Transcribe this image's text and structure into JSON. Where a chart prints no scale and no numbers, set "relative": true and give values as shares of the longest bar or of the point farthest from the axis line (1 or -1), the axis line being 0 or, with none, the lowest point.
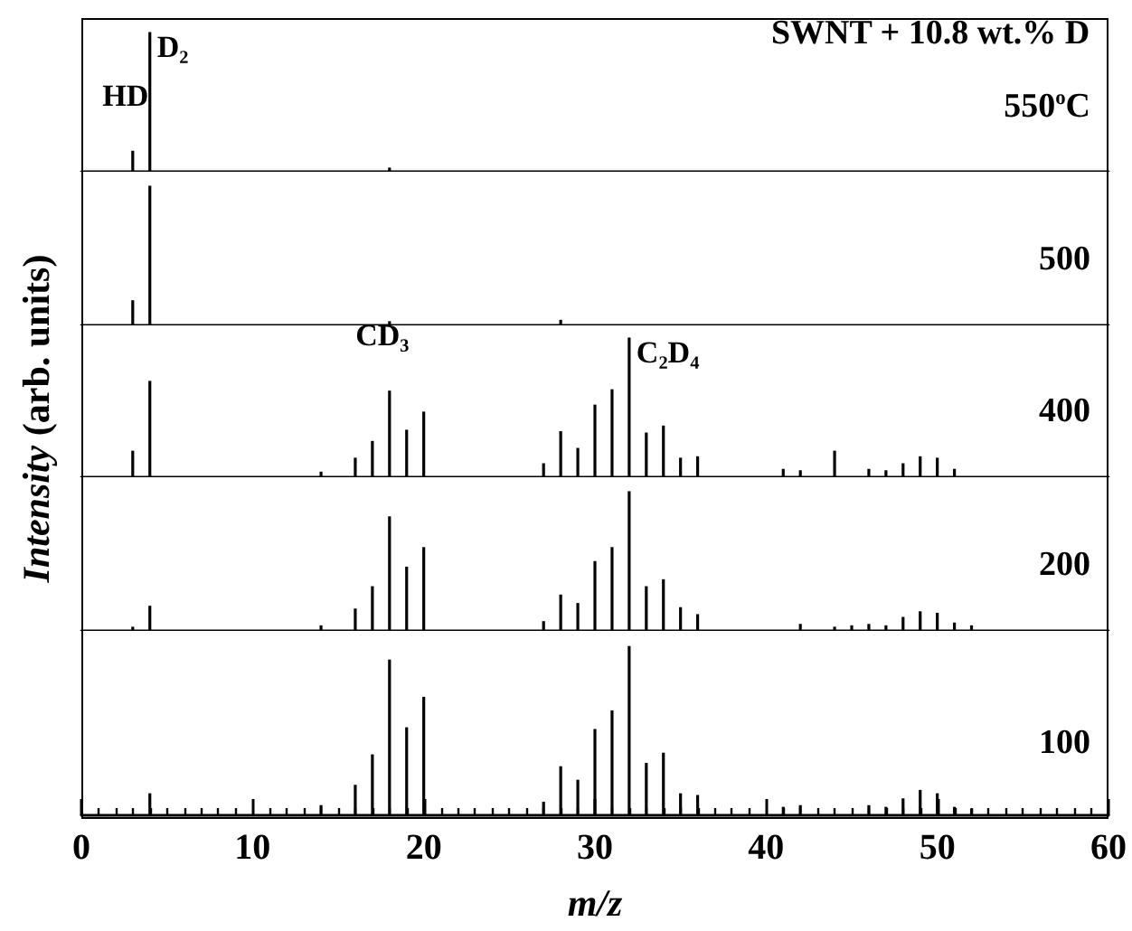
{
  "chart_data": [
    {
      "type": "bar",
      "relative": true,
      "xlim": [
        0,
        60
      ],
      "tick_labels": false,
      "grid": false,
      "annotations": [
        "SWNT + 10.8 wt.% D",
        "550$^{o}$C",
        {
          "text": "HD",
          "x": 3,
          "y": 0.15
        },
        {
          "text": "D₂",
          "x": 4,
          "y": 1
        }
      ],
      "series": [
        {
          "color": "#000000",
          "x": [
            3,
            4,
            18
          ],
          "values": [
            0.15,
            1,
            0.03
          ]
        }
      ]
    },
    {
      "type": "bar",
      "relative": true,
      "xlim": [
        0,
        60
      ],
      "tick_labels": false,
      "grid": false,
      "annotations": [
        "500"
      ],
      "series": [
        {
          "color": "#000000",
          "x": [
            3,
            4,
            18,
            28
          ],
          "values": [
            0.18,
            1,
            0.03,
            0.04
          ]
        }
      ]
    },
    {
      "type": "bar",
      "relative": true,
      "xlim": [
        0,
        60
      ],
      "tick_labels": false,
      "grid": false,
      "ylabel": "Intensity  (arb. units)",
      "annotations": [
        "400",
        {
          "text": "CD₃",
          "x": 18,
          "y": 0.62
        },
        {
          "text": "C₂D₄",
          "x": 32,
          "y": 1
        }
      ],
      "series": [
        {
          "color": "#000000",
          "x": [
            3,
            4,
            14,
            16,
            17,
            18,
            19,
            20,
            27,
            28,
            29,
            30,
            31,
            32,
            33,
            34,
            35,
            36,
            41,
            42,
            44,
            46,
            47,
            48,
            49,
            50,
            51
          ],
          "values": [
            0.19,
            0.69,
            0.04,
            0.14,
            0.26,
            0.62,
            0.34,
            0.47,
            0.1,
            0.33,
            0.21,
            0.52,
            0.63,
            1,
            0.32,
            0.37,
            0.14,
            0.15,
            0.06,
            0.05,
            0.19,
            0.06,
            0.05,
            0.1,
            0.15,
            0.14,
            0.06
          ]
        }
      ]
    },
    {
      "type": "bar",
      "relative": true,
      "xlim": [
        0,
        60
      ],
      "tick_labels": false,
      "grid": false,
      "annotations": [
        "200"
      ],
      "series": [
        {
          "color": "#000000",
          "x": [
            3,
            4,
            14,
            16,
            17,
            18,
            19,
            20,
            27,
            28,
            29,
            30,
            31,
            32,
            33,
            34,
            35,
            36,
            42,
            44,
            45,
            46,
            47,
            48,
            49,
            50,
            51,
            52
          ],
          "values": [
            0.03,
            0.18,
            0.04,
            0.16,
            0.32,
            0.82,
            0.46,
            0.6,
            0.07,
            0.26,
            0.2,
            0.5,
            0.6,
            1,
            0.32,
            0.37,
            0.17,
            0.12,
            0.05,
            0.03,
            0.04,
            0.05,
            0.04,
            0.1,
            0.14,
            0.13,
            0.06,
            0.04
          ]
        }
      ]
    },
    {
      "type": "bar",
      "relative": true,
      "xlim": [
        0,
        60
      ],
      "tick_labels": "x",
      "grid": false,
      "xlabel": "m/z",
      "xticks": [
        0,
        {
          "value": 1,
          "label": null
        },
        {
          "value": 2,
          "label": null
        },
        {
          "value": 3,
          "label": null
        },
        {
          "value": 4,
          "label": null
        },
        {
          "value": 5,
          "label": null
        },
        {
          "value": 6,
          "label": null
        },
        {
          "value": 7,
          "label": null
        },
        {
          "value": 8,
          "label": null
        },
        {
          "value": 9,
          "label": null
        },
        10,
        {
          "value": 11,
          "label": null
        },
        {
          "value": 12,
          "label": null
        },
        {
          "value": 13,
          "label": null
        },
        {
          "value": 14,
          "label": null
        },
        {
          "value": 15,
          "label": null
        },
        {
          "value": 16,
          "label": null
        },
        {
          "value": 17,
          "label": null
        },
        {
          "value": 18,
          "label": null
        },
        {
          "value": 19,
          "label": null
        },
        20,
        {
          "value": 21,
          "label": null
        },
        {
          "value": 22,
          "label": null
        },
        {
          "value": 23,
          "label": null
        },
        {
          "value": 24,
          "label": null
        },
        {
          "value": 25,
          "label": null
        },
        {
          "value": 26,
          "label": null
        },
        {
          "value": 27,
          "label": null
        },
        {
          "value": 28,
          "label": null
        },
        {
          "value": 29,
          "label": null
        },
        30,
        {
          "value": 31,
          "label": null
        },
        {
          "value": 32,
          "label": null
        },
        {
          "value": 33,
          "label": null
        },
        {
          "value": 34,
          "label": null
        },
        {
          "value": 35,
          "label": null
        },
        {
          "value": 36,
          "label": null
        },
        {
          "value": 37,
          "label": null
        },
        {
          "value": 38,
          "label": null
        },
        {
          "value": 39,
          "label": null
        },
        40,
        {
          "value": 41,
          "label": null
        },
        {
          "value": 42,
          "label": null
        },
        {
          "value": 43,
          "label": null
        },
        {
          "value": 44,
          "label": null
        },
        {
          "value": 45,
          "label": null
        },
        {
          "value": 46,
          "label": null
        },
        {
          "value": 47,
          "label": null
        },
        {
          "value": 48,
          "label": null
        },
        {
          "value": 49,
          "label": null
        },
        50,
        {
          "value": 51,
          "label": null
        },
        {
          "value": 52,
          "label": null
        },
        {
          "value": 53,
          "label": null
        },
        {
          "value": 54,
          "label": null
        },
        {
          "value": 55,
          "label": null
        },
        {
          "value": 56,
          "label": null
        },
        {
          "value": 57,
          "label": null
        },
        {
          "value": 58,
          "label": null
        },
        {
          "value": 59,
          "label": null
        },
        60
      ],
      "annotations": [
        "100"
      ],
      "series": [
        {
          "color": "#000000",
          "x": [
            4,
            14,
            16,
            17,
            18,
            19,
            20,
            27,
            28,
            29,
            30,
            31,
            32,
            33,
            34,
            35,
            36,
            41,
            42,
            46,
            47,
            48,
            49,
            50,
            51,
            52
          ],
          "values": [
            0.13,
            0.06,
            0.18,
            0.36,
            0.92,
            0.52,
            0.7,
            0.08,
            0.29,
            0.21,
            0.51,
            0.62,
            1,
            0.31,
            0.37,
            0.13,
            0.12,
            0.05,
            0.06,
            0.06,
            0.05,
            0.1,
            0.15,
            0.13,
            0.05,
            0.04
          ]
        }
      ]
    }
  ]
}
